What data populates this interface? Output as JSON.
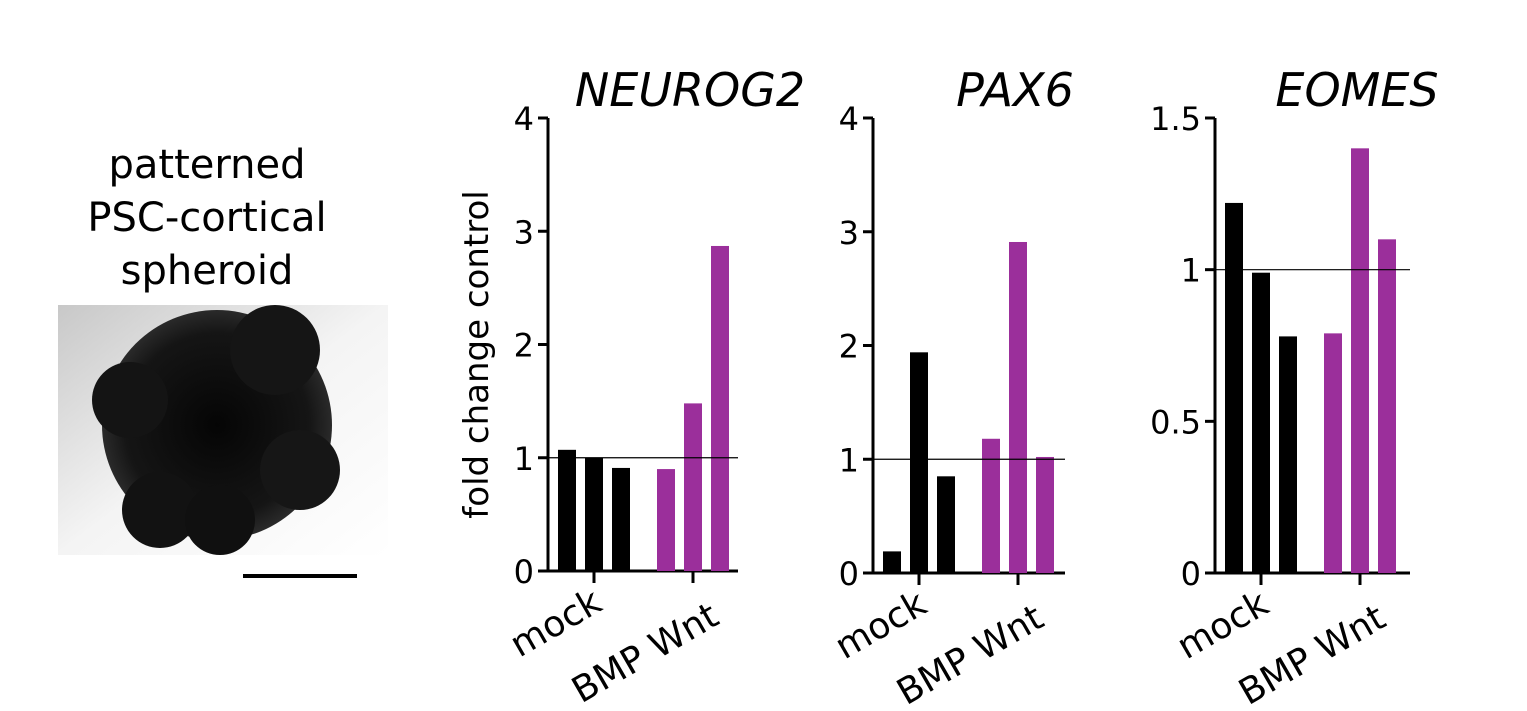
{
  "image": {
    "label": [
      "patterned",
      "PSC-cortical",
      "spheroid"
    ]
  },
  "chart_data": [
    {
      "type": "bar",
      "title": "NEUROG2",
      "y_label": "fold change control",
      "categories": [
        null,
        "mock",
        null,
        null,
        "BMP Wnt",
        null
      ],
      "series": [
        {
          "color": "#000000",
          "values": [
            1.07,
            1.0,
            0.91,
            null,
            null,
            null
          ]
        },
        {
          "color": "#9b2f9b",
          "values": [
            null,
            null,
            null,
            0.9,
            1.48,
            2.87
          ]
        }
      ],
      "ylim": [
        0,
        4
      ],
      "yticks": [
        0,
        1,
        2,
        3,
        4
      ],
      "reference_line": 1
    },
    {
      "type": "bar",
      "title": "PAX6",
      "categories": [
        null,
        "mock",
        null,
        null,
        "BMP Wnt",
        null
      ],
      "series": [
        {
          "color": "#000000",
          "values": [
            0.19,
            1.94,
            0.85,
            null,
            null,
            null
          ]
        },
        {
          "color": "#9b2f9b",
          "values": [
            null,
            null,
            null,
            1.18,
            2.91,
            1.02
          ]
        }
      ],
      "ylim": [
        0,
        4
      ],
      "yticks": [
        0,
        1,
        2,
        3,
        4
      ],
      "reference_line": 1
    },
    {
      "type": "bar",
      "title": "EOMES",
      "categories": [
        null,
        "mock",
        null,
        null,
        "BMP Wnt",
        null
      ],
      "series": [
        {
          "color": "#000000",
          "values": [
            1.22,
            0.99,
            0.78,
            null,
            null,
            null
          ]
        },
        {
          "color": "#9b2f9b",
          "values": [
            null,
            null,
            null,
            0.79,
            1.4,
            1.1
          ]
        }
      ],
      "ylim": [
        0,
        1.5
      ],
      "yticks": [
        0,
        0.5,
        1,
        1.5
      ],
      "reference_line": 1
    }
  ]
}
